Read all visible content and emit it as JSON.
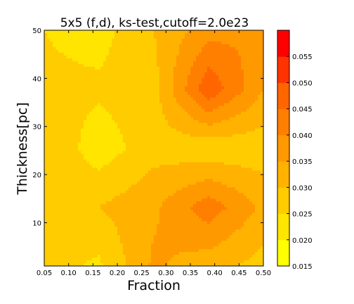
{
  "chart_data": {
    "type": "heatmap",
    "title": "5x5 (f,d), ks-test,cutoff=2.0e23",
    "xlabel": "Fraction",
    "ylabel": "Thickness[pc]",
    "xlim": [
      0.05,
      0.5
    ],
    "ylim": [
      1,
      50
    ],
    "x_ticks": [
      "0.05",
      "0.10",
      "0.15",
      "0.20",
      "0.25",
      "0.30",
      "0.35",
      "0.40",
      "0.45",
      "0.50"
    ],
    "y_ticks": [
      "10",
      "20",
      "30",
      "40",
      "50"
    ],
    "x": [
      0.05,
      0.1625,
      0.275,
      0.3875,
      0.5
    ],
    "y": [
      1,
      13.25,
      25.5,
      37.75,
      50
    ],
    "z": [
      [
        0.027,
        0.024,
        0.036,
        0.032,
        0.028
      ],
      [
        0.027,
        0.03,
        0.034,
        0.043,
        0.034
      ],
      [
        0.03,
        0.022,
        0.028,
        0.026,
        0.027
      ],
      [
        0.026,
        0.026,
        0.028,
        0.049,
        0.035
      ],
      [
        0.025,
        0.023,
        0.03,
        0.038,
        0.04
      ]
    ],
    "colorbar": {
      "levels": [
        0.015,
        0.02,
        0.025,
        0.03,
        0.035,
        0.04,
        0.045,
        0.05,
        0.055
      ],
      "tick_labels": [
        "0.015",
        "0.020",
        "0.025",
        "0.030",
        "0.035",
        "0.040",
        "0.045",
        "0.050",
        "0.055"
      ],
      "colors": [
        "#ffff00",
        "#ffe500",
        "#ffcc00",
        "#ffb200",
        "#ff9900",
        "#ff7f00",
        "#ff6600",
        "#ff3300",
        "#ff0000"
      ]
    }
  }
}
